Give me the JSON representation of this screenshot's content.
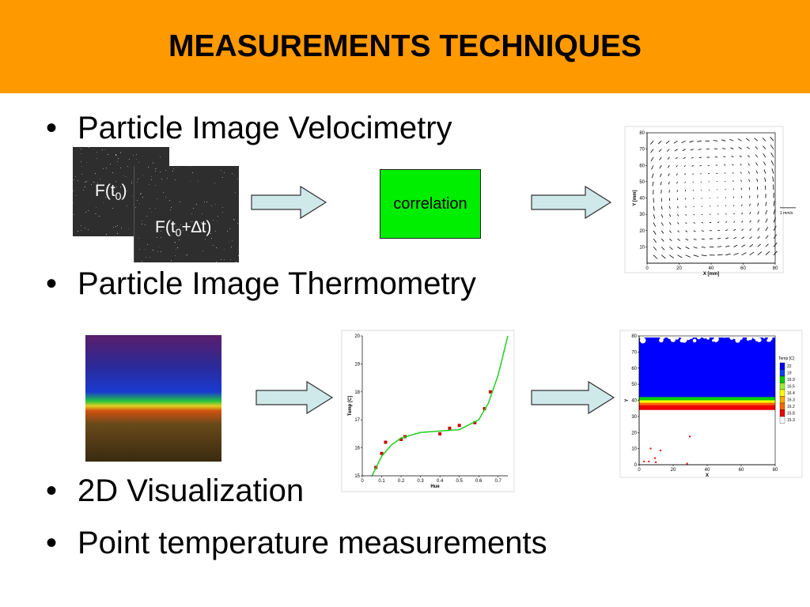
{
  "header": {
    "title": "MEASUREMENTS TECHNIQUES"
  },
  "bullets": [
    "Particle Image Velocimetry",
    "Particle Image Thermometry",
    "2D Visualization",
    "Point temperature measurements"
  ],
  "piv": {
    "frame1": {
      "base": "F(t",
      "sub": "0",
      "tail": ")"
    },
    "frame2": {
      "base": "F(t",
      "sub": "0",
      "tail": "+∆t)"
    },
    "step": "correlation"
  },
  "chart_data": [
    {
      "type": "quiver",
      "xlabel": "X [mm]",
      "ylabel": "Y [mm]",
      "annotation": "1 mm/s",
      "xlim": [
        0,
        80
      ],
      "xticks": [
        0,
        20,
        40,
        60,
        80
      ],
      "ylim": [
        0,
        80
      ],
      "yticks": [
        10,
        20,
        30,
        40,
        50,
        60,
        70,
        80
      ]
    },
    {
      "type": "scatter",
      "xlabel": "Hue",
      "ylabel": "Temp [C]",
      "xlim": [
        0,
        0.75
      ],
      "xticks": [
        0,
        0.1,
        0.2,
        0.3,
        0.4,
        0.5,
        0.6,
        0.7
      ],
      "ylim": [
        15,
        20
      ],
      "yticks": [
        15,
        16,
        17,
        18,
        19,
        20
      ],
      "series": [
        {
          "color": "#cc0000",
          "x": [
            0.07,
            0.1,
            0.12,
            0.2,
            0.22,
            0.4,
            0.45,
            0.5,
            0.58,
            0.63,
            0.66
          ],
          "values": [
            15.3,
            15.8,
            16.2,
            16.3,
            16.4,
            16.5,
            16.7,
            16.8,
            16.9,
            17.4,
            18.0
          ]
        },
        {
          "color": "#22cc22",
          "x": [
            0.05,
            0.1,
            0.15,
            0.2,
            0.3,
            0.4,
            0.5,
            0.6,
            0.65,
            0.7,
            0.75
          ],
          "values": [
            15.0,
            15.7,
            16.1,
            16.35,
            16.55,
            16.6,
            16.65,
            17.0,
            17.6,
            18.6,
            20.0
          ]
        }
      ]
    },
    {
      "type": "contour",
      "xlabel": "X",
      "ylabel": "Y",
      "legend_title": "Temp [C]",
      "xlim": [
        0,
        80
      ],
      "xticks": [
        0,
        20,
        40,
        60,
        80
      ],
      "ylim": [
        0,
        80
      ],
      "yticks": [
        0,
        10,
        20,
        30,
        40,
        50,
        60,
        70,
        80
      ],
      "levels": [
        {
          "value": 22,
          "color": "#0000ff"
        },
        {
          "value": 19,
          "color": "#1040ff"
        },
        {
          "value": 16.9,
          "color": "#00cc00"
        },
        {
          "value": 16.5,
          "color": "#99ee33"
        },
        {
          "value": 16.4,
          "color": "#ffff00"
        },
        {
          "value": 16.3,
          "color": "#ffaa00"
        },
        {
          "value": 16.2,
          "color": "#ff6600"
        },
        {
          "value": 15.8,
          "color": "#ee0000"
        },
        {
          "value": 15.3,
          "color": "#ffffff"
        }
      ]
    }
  ]
}
